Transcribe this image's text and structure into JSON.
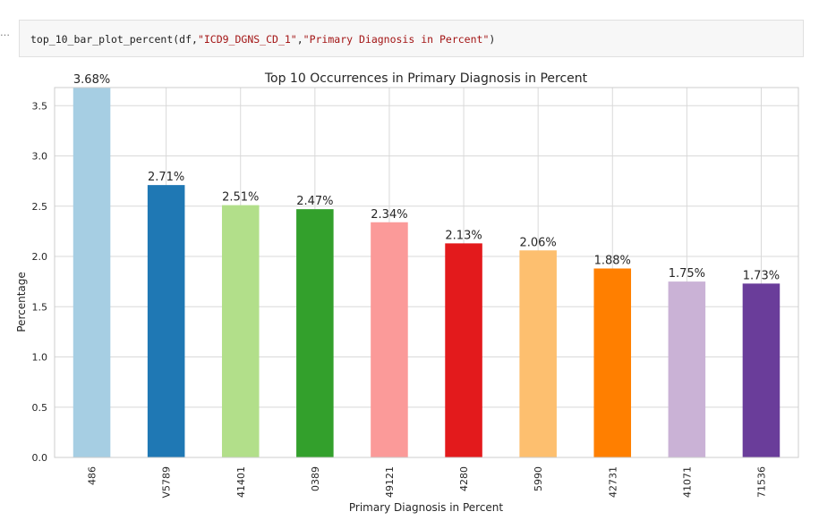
{
  "cell": {
    "prompt": "…",
    "code_prefix": "top_10_bar_plot_percent(df,",
    "code_arg1": "\"ICD9_DGNS_CD_1\"",
    "code_comma": ",",
    "code_arg2": "\"Primary Diagnosis in Percent\"",
    "code_suffix": ")"
  },
  "chart_data": {
    "type": "bar",
    "title": "Top 10 Occurrences in Primary Diagnosis in Percent",
    "xlabel": "Primary Diagnosis in Percent",
    "ylabel": "Percentage",
    "categories": [
      "486",
      "V5789",
      "41401",
      "0389",
      "49121",
      "4280",
      "5990",
      "42731",
      "41071",
      "71536"
    ],
    "values": [
      3.68,
      2.71,
      2.51,
      2.47,
      2.34,
      2.13,
      2.06,
      1.88,
      1.75,
      1.73
    ],
    "data_labels": [
      "3.68%",
      "2.71%",
      "2.51%",
      "2.47%",
      "2.34%",
      "2.13%",
      "2.06%",
      "1.88%",
      "1.75%",
      "1.73%"
    ],
    "colors": [
      "#a6cee3",
      "#1f78b4",
      "#b2df8a",
      "#33a02c",
      "#fb9a99",
      "#e31a1c",
      "#fdbf6f",
      "#ff7f00",
      "#cab2d6",
      "#6a3d9a"
    ],
    "yticks": [
      "0.0",
      "0.5",
      "1.0",
      "1.5",
      "2.0",
      "2.5",
      "3.0",
      "3.5"
    ],
    "ylim": [
      0,
      3.68
    ],
    "grid": true,
    "legend": "none"
  }
}
